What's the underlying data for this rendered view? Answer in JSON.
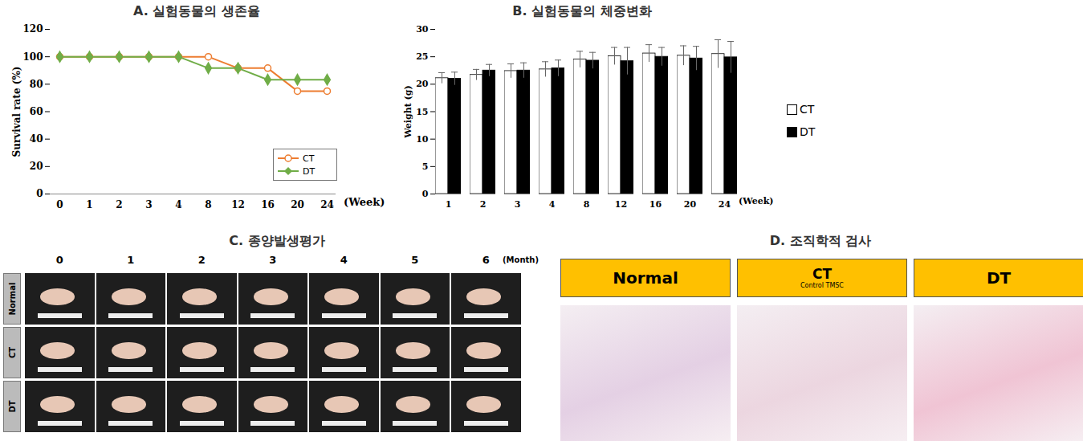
{
  "chart_data": [
    {
      "type": "line",
      "title": "A. 실험동물의 생존율",
      "x_label": "(Week)",
      "y_label": "Survival rate (%)",
      "categories": [
        0,
        1,
        2,
        3,
        4,
        8,
        12,
        16,
        20,
        24
      ],
      "series": [
        {
          "name": "CT",
          "color": "#ed7d31",
          "marker": "circle",
          "values": [
            100,
            100,
            100,
            100,
            100,
            100,
            91.7,
            91.7,
            75,
            75
          ]
        },
        {
          "name": "DT",
          "color": "#70ad47",
          "marker": "diamond",
          "values": [
            100,
            100,
            100,
            100,
            100,
            91.7,
            91.7,
            83.3,
            83.3,
            83.3
          ]
        }
      ],
      "ylim": [
        0,
        120
      ],
      "yticks": [
        0,
        20,
        40,
        60,
        80,
        100,
        120
      ],
      "legend": "lower right"
    },
    {
      "type": "bar",
      "title": "B. 실험동물의 체중변화",
      "x_label": "(Week)",
      "y_label": "Weight (g)",
      "categories": [
        1,
        2,
        3,
        4,
        8,
        12,
        16,
        20,
        24
      ],
      "series": [
        {
          "name": "CT",
          "color": "#ffffff",
          "values": [
            21.1,
            21.7,
            22.4,
            22.7,
            24.5,
            25.1,
            25.6,
            25.2,
            25.5
          ],
          "errors": [
            1.0,
            1.0,
            1.3,
            1.4,
            1.5,
            1.6,
            1.6,
            1.8,
            2.6
          ]
        },
        {
          "name": "DT",
          "color": "#000000",
          "values": [
            21.0,
            22.5,
            22.5,
            22.9,
            24.3,
            24.2,
            25.0,
            24.7,
            24.9
          ],
          "errors": [
            1.2,
            1.1,
            1.4,
            1.5,
            1.5,
            2.5,
            1.7,
            2.2,
            2.9
          ]
        }
      ],
      "ylim": [
        0,
        30
      ],
      "yticks": [
        0,
        5,
        10,
        15,
        20,
        25,
        30
      ],
      "legend": "right"
    }
  ],
  "photo_panels": [
    {
      "title": "C. 종양발생평가",
      "columns": [
        0,
        1,
        2,
        3,
        4,
        5,
        6
      ],
      "column_unit": "(Month)",
      "rows": [
        "Normal",
        "CT",
        "DT"
      ]
    },
    {
      "title": "D. 조직학적 검사",
      "columns": [
        {
          "label": "Normal"
        },
        {
          "label": "CT",
          "sublabel": "Control TMSC"
        },
        {
          "label": "DT"
        }
      ]
    }
  ]
}
